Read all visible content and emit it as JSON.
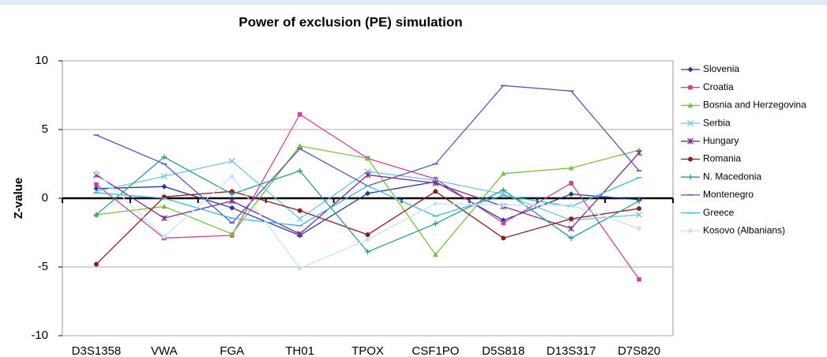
{
  "chart_data": {
    "type": "line",
    "title": "Power of exclusion (PE) simulation",
    "y_label": "Z-value",
    "categories": [
      "D3S1358",
      "VWA",
      "FGA",
      "TH01",
      "TPOX",
      "CSF1PO",
      "D5S818",
      "D13S317",
      "D7S820"
    ],
    "ylim": [
      -10,
      10
    ],
    "yticks": [
      -10,
      -5,
      0,
      5,
      10
    ],
    "grid": true,
    "legend": "right",
    "series": [
      {
        "name": "Slovenia",
        "color": "#283a8e",
        "marker": "diamond",
        "values": [
          0.7,
          0.85,
          -0.7,
          -2.7,
          0.35,
          1.2,
          -1.6,
          0.3,
          -0.1
        ]
      },
      {
        "name": "Croatia",
        "color": "#c9449c",
        "marker": "square",
        "values": [
          1.0,
          -2.9,
          -2.7,
          6.1,
          2.9,
          1.4,
          -1.8,
          1.1,
          -5.9
        ]
      },
      {
        "name": "Bosnia and Herzegovina",
        "color": "#79be3e",
        "marker": "triangle",
        "values": [
          -1.2,
          -0.6,
          -2.6,
          3.8,
          2.9,
          -4.1,
          1.8,
          2.2,
          3.5
        ]
      },
      {
        "name": "Serbia",
        "color": "#72c4dd",
        "marker": "x",
        "values": [
          0.5,
          1.6,
          2.7,
          -1.5,
          1.95,
          1.3,
          0.3,
          -1.6,
          -1.2
        ]
      },
      {
        "name": "Hungary",
        "color": "#7b2c8c",
        "marker": "star",
        "values": [
          1.7,
          -1.45,
          -0.2,
          -2.6,
          1.7,
          1.1,
          -0.6,
          -2.2,
          3.3
        ]
      },
      {
        "name": "Romania",
        "color": "#8b1c1c",
        "marker": "circle",
        "values": [
          -4.8,
          0.1,
          0.5,
          -0.9,
          -2.65,
          0.5,
          -2.9,
          -1.5,
          -0.75
        ]
      },
      {
        "name": "N. Macedonia",
        "color": "#2a9a8c",
        "marker": "plus",
        "values": [
          -1.2,
          3.0,
          0.3,
          2.0,
          -3.9,
          -1.85,
          0.6,
          -2.9,
          -0.2
        ]
      },
      {
        "name": "Montenegro",
        "color": "#5656b6",
        "marker": "dash",
        "values": [
          4.6,
          2.5,
          -1.8,
          3.6,
          0.9,
          2.5,
          8.2,
          7.8,
          2.0
        ]
      },
      {
        "name": "Greece",
        "color": "#36b6e0",
        "marker": "dash",
        "values": [
          0.4,
          0,
          -1.45,
          -2.0,
          0.9,
          -1.3,
          0.2,
          -0.6,
          1.5
        ]
      },
      {
        "name": "Kosovo (Albanians)",
        "color": "#c6e2f5",
        "marker": "diamond",
        "values": [
          1.9,
          -2.8,
          1.6,
          -5.1,
          -3.0,
          -0.4,
          -0.5,
          -0.5,
          -2.2
        ]
      }
    ]
  }
}
